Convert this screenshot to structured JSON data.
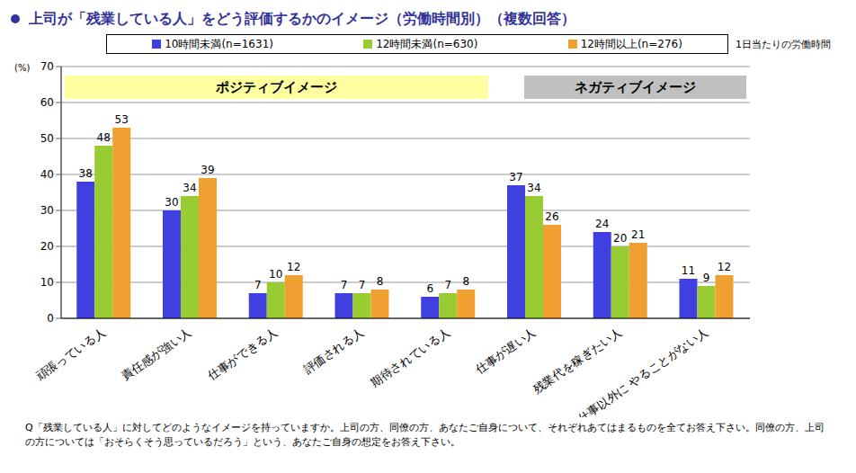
{
  "chart_data": {
    "type": "bar",
    "title": "上司が「残業している人」をどう評価するかのイメージ（労働時間別）（複数回答）",
    "y_label": "(%)",
    "legend_title": "1日当たりの労働時間",
    "categories": [
      "頑張っている人",
      "責任感が強い人",
      "仕事ができる人",
      "評価される人",
      "期待されている人",
      "仕事が遅い人",
      "残業代を稼ぎたい人",
      "仕事以外に やることがない人"
    ],
    "series": [
      {
        "name": "10時間未満(n=1631)",
        "color": "#4040e0",
        "values": [
          38,
          30,
          7,
          7,
          6,
          37,
          24,
          11
        ]
      },
      {
        "name": "12時間未満(n=630)",
        "color": "#99cc33",
        "values": [
          48,
          34,
          10,
          7,
          7,
          34,
          20,
          9
        ]
      },
      {
        "name": "12時間以上(n=276)",
        "color": "#f0a030",
        "values": [
          53,
          39,
          12,
          8,
          8,
          26,
          21,
          12
        ]
      }
    ],
    "ylim": [
      0,
      70
    ],
    "yticks": [
      0,
      10,
      20,
      30,
      40,
      50,
      60,
      70
    ],
    "grid": true,
    "data_labels": true,
    "legend": "top",
    "annotations": [
      {
        "text": "ポジティブイメージ",
        "from": "頑張っている人",
        "to": "期待されている人"
      },
      {
        "text": "ネガティブイメージ",
        "from": "仕事が遅い人",
        "to": "仕事以外に やることがない人"
      }
    ],
    "note": "Q「残業している人」に対してどのようなイメージを持っていますか。上司の方、同僚の方、あなたご自身について、それぞれあてはまるものを全てお答え下さい。同僚の方、上司の方については「おそらくそう思っているだろう」という、あなたご自身の想定をお答え下さい。"
  }
}
